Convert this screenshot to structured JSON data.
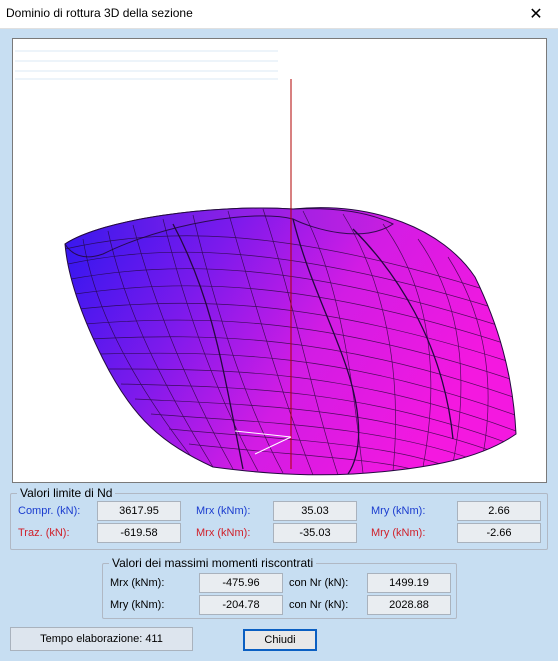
{
  "window": {
    "title": "Dominio di rottura 3D della sezione",
    "close_glyph": "✕"
  },
  "colors": {
    "background": "#c7def2",
    "surface_blue": "#3d15e6",
    "surface_magenta": "#f018e6",
    "axis_red": "#b00000",
    "label_blue": "#1a3ccf",
    "label_red": "#d0202a"
  },
  "limits": {
    "legend": "Valori limite di Nd",
    "compr_label": "Compr. (kN):",
    "compr_value": "3617.95",
    "traz_label": "Traz. (kN):",
    "traz_value": "-619.58",
    "mrx_pos_label": "Mrx (kNm):",
    "mrx_pos_value": "35.03",
    "mrx_neg_label": "Mrx (kNm):",
    "mrx_neg_value": "-35.03",
    "mry_pos_label": "Mry (kNm):",
    "mry_pos_value": "2.66",
    "mry_neg_label": "Mry (kNm):",
    "mry_neg_value": "-2.66"
  },
  "max_moments": {
    "legend": "Valori dei massimi momenti riscontrati",
    "mrx_label": "Mrx (kNm):",
    "mrx_value": "-475.96",
    "mrx_nr_label": "con Nr (kN):",
    "mrx_nr_value": "1499.19",
    "mry_label": "Mry (kNm):",
    "mry_value": "-204.78",
    "mry_nr_label": "con Nr (kN):",
    "mry_nr_value": "2028.88"
  },
  "footer": {
    "status_text": "Tempo elaborazione: 411",
    "close_button_label": "Chiudi"
  }
}
